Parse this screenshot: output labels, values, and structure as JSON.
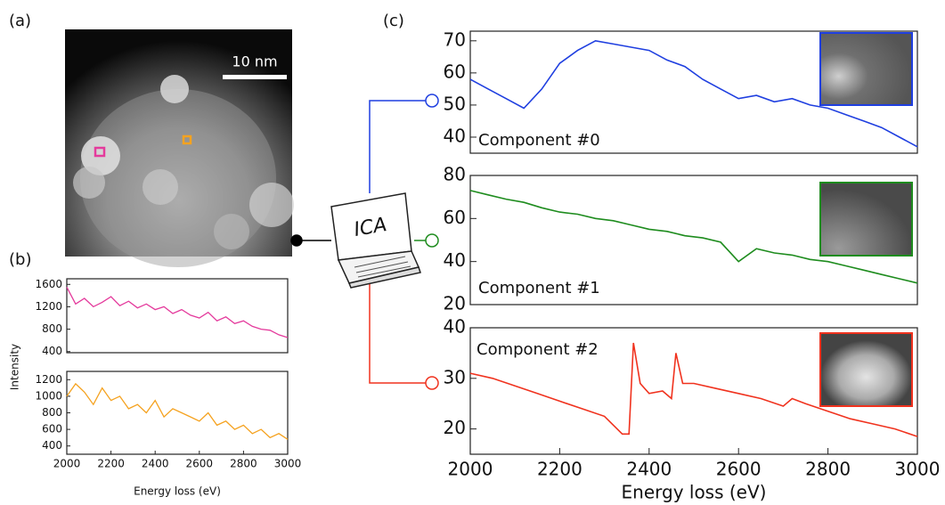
{
  "panels": {
    "a": "(a)",
    "b": "(b)",
    "c": "(c)"
  },
  "scale_bar": "10 nm",
  "ica_label": "ICA",
  "chart_data": [
    {
      "type": "line",
      "color": "#e43a9c",
      "x": [
        2000,
        2040,
        2080,
        2120,
        2160,
        2200,
        2240,
        2280,
        2320,
        2360,
        2400,
        2440,
        2480,
        2520,
        2560,
        2600,
        2640,
        2680,
        2720,
        2760,
        2800,
        2840,
        2880,
        2920,
        2960,
        3000
      ],
      "values": [
        1550,
        1250,
        1350,
        1200,
        1280,
        1380,
        1220,
        1300,
        1180,
        1250,
        1150,
        1200,
        1080,
        1150,
        1050,
        1000,
        1100,
        950,
        1020,
        900,
        950,
        850,
        800,
        780,
        700,
        650
      ],
      "xlim": [
        2000,
        3000
      ],
      "ylim": [
        380,
        1700
      ],
      "yticks": [
        400,
        800,
        1200,
        1600
      ],
      "ylabel": "Intensity"
    },
    {
      "type": "line",
      "color": "#f5a21f",
      "x": [
        2000,
        2040,
        2080,
        2120,
        2160,
        2200,
        2240,
        2280,
        2320,
        2360,
        2400,
        2440,
        2480,
        2520,
        2560,
        2600,
        2640,
        2680,
        2720,
        2760,
        2800,
        2840,
        2880,
        2920,
        2960,
        3000
      ],
      "values": [
        1000,
        1150,
        1050,
        900,
        1100,
        950,
        1000,
        850,
        900,
        800,
        950,
        750,
        850,
        800,
        750,
        700,
        800,
        650,
        700,
        600,
        650,
        550,
        600,
        500,
        550,
        480
      ],
      "xlim": [
        2000,
        3000
      ],
      "ylim": [
        300,
        1300
      ],
      "yticks": [
        400,
        600,
        800,
        1000,
        1200
      ],
      "xticks": [
        2000,
        2200,
        2400,
        2600,
        2800,
        3000
      ],
      "xlabel": "Energy loss (eV)"
    },
    {
      "type": "line",
      "color": "#1f3fe0",
      "annotation": "Component #0",
      "x": [
        2000,
        2040,
        2080,
        2120,
        2160,
        2200,
        2240,
        2280,
        2320,
        2360,
        2400,
        2440,
        2480,
        2520,
        2560,
        2600,
        2640,
        2680,
        2720,
        2760,
        2800,
        2840,
        2880,
        2920,
        2960,
        3000
      ],
      "values": [
        58,
        55,
        52,
        49,
        55,
        63,
        67,
        70,
        69,
        68,
        67,
        64,
        62,
        58,
        55,
        52,
        53,
        51,
        52,
        50,
        49,
        47,
        45,
        43,
        40,
        37
      ],
      "xlim": [
        2000,
        3000
      ],
      "ylim": [
        35,
        73
      ],
      "yticks": [
        40,
        50,
        60,
        70
      ]
    },
    {
      "type": "line",
      "color": "#1e8c1e",
      "annotation": "Component #1",
      "x": [
        2000,
        2040,
        2080,
        2120,
        2160,
        2200,
        2240,
        2280,
        2320,
        2360,
        2400,
        2440,
        2480,
        2520,
        2560,
        2600,
        2640,
        2680,
        2720,
        2760,
        2800,
        2840,
        2880,
        2920,
        2960,
        3000
      ],
      "values": [
        73,
        71,
        69,
        67.5,
        65,
        63,
        62,
        60,
        59,
        57,
        55,
        54,
        52,
        51,
        49,
        40,
        46,
        44,
        43,
        41,
        40,
        38,
        36,
        34,
        32,
        30
      ],
      "xlim": [
        2000,
        3000
      ],
      "ylim": [
        20,
        80
      ],
      "yticks": [
        20,
        40,
        60,
        80
      ]
    },
    {
      "type": "line",
      "color": "#f0321e",
      "annotation": "Component #2",
      "x": [
        2000,
        2050,
        2100,
        2150,
        2200,
        2250,
        2300,
        2340,
        2355,
        2365,
        2380,
        2400,
        2430,
        2450,
        2460,
        2475,
        2500,
        2550,
        2600,
        2650,
        2700,
        2720,
        2750,
        2800,
        2850,
        2900,
        2950,
        3000
      ],
      "values": [
        31,
        30,
        28.5,
        27,
        25.5,
        24,
        22.5,
        19,
        19,
        37,
        29,
        27,
        27.5,
        26,
        35,
        29,
        29,
        28,
        27,
        26,
        24.5,
        26,
        25,
        23.5,
        22,
        21,
        20,
        18.5
      ],
      "xlim": [
        2000,
        3000
      ],
      "ylim": [
        15,
        40
      ],
      "yticks": [
        20,
        30,
        40
      ],
      "xticks": [
        2000,
        2200,
        2400,
        2600,
        2800,
        3000
      ],
      "xlabel": "Energy loss (eV)"
    }
  ]
}
